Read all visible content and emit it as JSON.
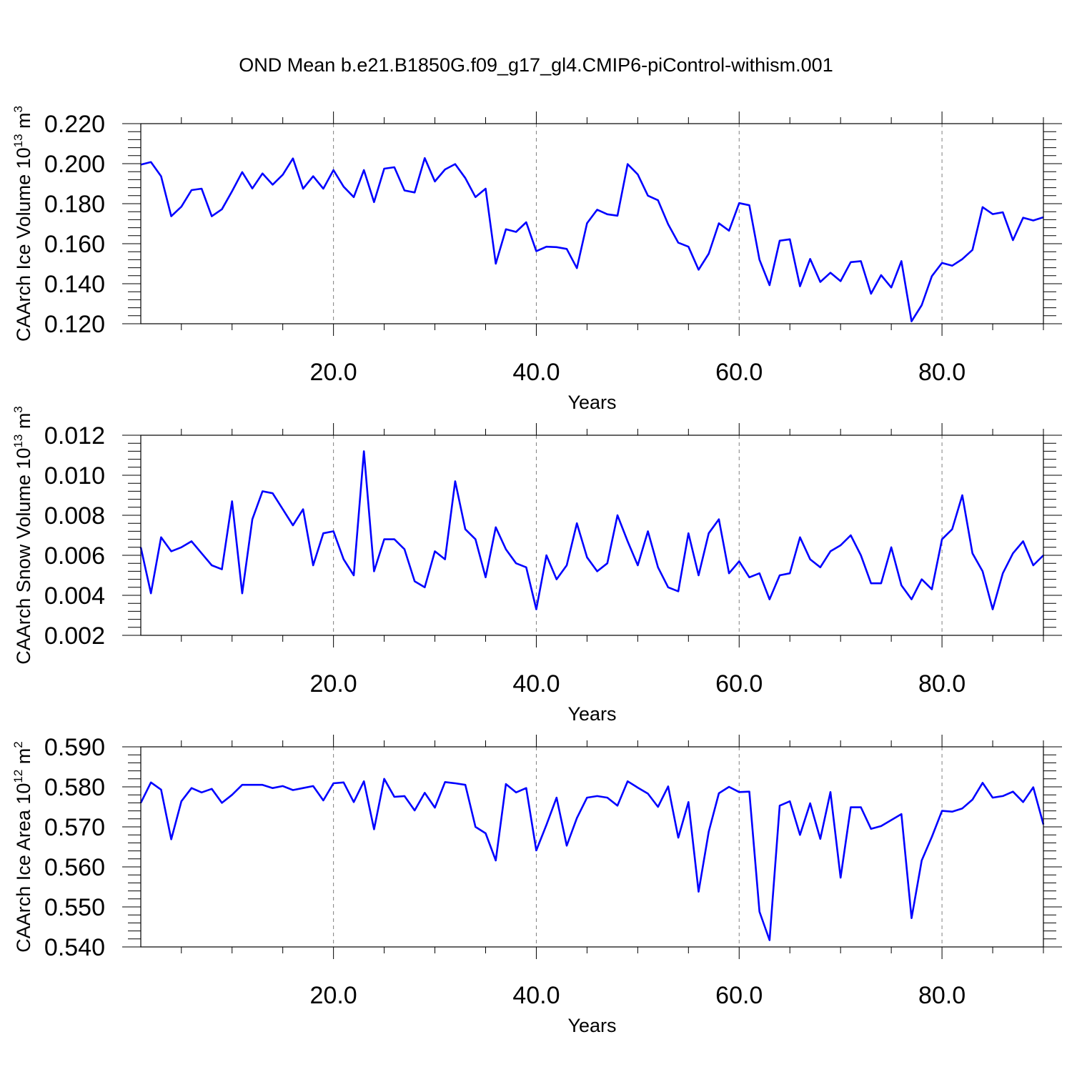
{
  "title": "OND Mean b.e21.B1850G.f09_g17_gl4.CMIP6-piControl-withism.001",
  "line_color": "#0000ff",
  "chart_data": [
    {
      "type": "line",
      "xlabel": "Years",
      "ylabel_parts": {
        "main": "CAArch Ice Volume 10",
        "exp": "13",
        "unit": " m",
        "unit_exp": "3"
      },
      "xlim": [
        1,
        90
      ],
      "ylim": [
        0.12,
        0.22
      ],
      "xticks": [
        20,
        40,
        60,
        80
      ],
      "xtick_labels": [
        "20.0",
        "40.0",
        "60.0",
        "80.0"
      ],
      "yticks": [
        0.12,
        0.14,
        0.16,
        0.18,
        0.2,
        0.22
      ],
      "ytick_labels": [
        "0.120",
        "0.140",
        "0.160",
        "0.180",
        "0.200",
        "0.220"
      ],
      "x_gridlines": [
        20,
        40,
        60,
        80
      ],
      "series": [
        {
          "x": [
            1,
            2,
            3,
            4,
            5,
            6,
            7,
            8,
            9,
            10,
            11,
            12,
            13,
            14,
            15,
            16,
            17,
            18,
            19,
            20,
            21,
            22,
            23,
            24,
            25,
            26,
            27,
            28,
            29,
            30,
            31,
            32,
            33,
            34,
            35,
            36,
            37,
            38,
            39,
            40,
            41,
            42,
            43,
            44,
            45,
            46,
            47,
            48,
            49,
            50,
            51,
            52,
            53,
            54,
            55,
            56,
            57,
            58,
            59,
            60,
            61,
            62,
            63,
            64,
            65,
            66,
            67,
            68,
            69,
            70,
            71,
            72,
            73,
            74,
            75,
            76,
            77,
            78,
            79,
            80,
            81,
            82,
            83,
            84,
            85,
            86,
            87,
            88,
            89,
            90
          ],
          "values": [
            0.1995,
            0.2008,
            0.1937,
            0.1737,
            0.1785,
            0.1868,
            0.1875,
            0.1737,
            0.1772,
            0.1862,
            0.1958,
            0.1876,
            0.1951,
            0.1895,
            0.1945,
            0.2026,
            0.1875,
            0.1937,
            0.1875,
            0.1968,
            0.1885,
            0.1833,
            0.1968,
            0.1808,
            0.1975,
            0.1982,
            0.1866,
            0.1856,
            0.2028,
            0.1911,
            0.1971,
            0.1998,
            0.1928,
            0.1833,
            0.1875,
            0.15,
            0.1672,
            0.1659,
            0.1707,
            0.1563,
            0.1585,
            0.1583,
            0.1574,
            0.1478,
            0.1702,
            0.177,
            0.1747,
            0.174,
            0.1998,
            0.1946,
            0.184,
            0.1817,
            0.1697,
            0.1605,
            0.1585,
            0.147,
            0.155,
            0.1702,
            0.1665,
            0.1803,
            0.1792,
            0.152,
            0.1393,
            0.1615,
            0.1622,
            0.1387,
            0.1524,
            0.1409,
            0.1455,
            0.1413,
            0.1508,
            0.1513,
            0.135,
            0.1443,
            0.1381,
            0.1513,
            0.1212,
            0.1293,
            0.1438,
            0.1504,
            0.149,
            0.1523,
            0.1569,
            0.1783,
            0.1748,
            0.1757,
            0.1618,
            0.173,
            0.1716,
            0.1732
          ]
        }
      ]
    },
    {
      "type": "line",
      "xlabel": "Years",
      "ylabel_parts": {
        "main": "CAArch Snow Volume 10",
        "exp": "13",
        "unit": " m",
        "unit_exp": "3"
      },
      "xlim": [
        1,
        90
      ],
      "ylim": [
        0.002,
        0.012
      ],
      "xticks": [
        20,
        40,
        60,
        80
      ],
      "xtick_labels": [
        "20.0",
        "40.0",
        "60.0",
        "80.0"
      ],
      "yticks": [
        0.002,
        0.004,
        0.006,
        0.008,
        0.01,
        0.012
      ],
      "ytick_labels": [
        "0.002",
        "0.004",
        "0.006",
        "0.008",
        "0.010",
        "0.012"
      ],
      "x_gridlines": [
        20,
        40,
        60,
        80
      ],
      "series": [
        {
          "x": [
            1,
            2,
            3,
            4,
            5,
            6,
            7,
            8,
            9,
            10,
            11,
            12,
            13,
            14,
            15,
            16,
            17,
            18,
            19,
            20,
            21,
            22,
            23,
            24,
            25,
            26,
            27,
            28,
            29,
            30,
            31,
            32,
            33,
            34,
            35,
            36,
            37,
            38,
            39,
            40,
            41,
            42,
            43,
            44,
            45,
            46,
            47,
            48,
            49,
            50,
            51,
            52,
            53,
            54,
            55,
            56,
            57,
            58,
            59,
            60,
            61,
            62,
            63,
            64,
            65,
            66,
            67,
            68,
            69,
            70,
            71,
            72,
            73,
            74,
            75,
            76,
            77,
            78,
            79,
            80,
            81,
            82,
            83,
            84,
            85,
            86,
            87,
            88,
            89,
            90
          ],
          "values": [
            0.0064,
            0.0041,
            0.0069,
            0.0062,
            0.0064,
            0.0067,
            0.0061,
            0.0055,
            0.0053,
            0.0087,
            0.0041,
            0.0078,
            0.0092,
            0.0091,
            0.0083,
            0.0075,
            0.0083,
            0.0055,
            0.0071,
            0.0072,
            0.0058,
            0.005,
            0.0112,
            0.0052,
            0.0068,
            0.0068,
            0.0063,
            0.0047,
            0.0044,
            0.0062,
            0.0058,
            0.0097,
            0.0073,
            0.0068,
            0.0049,
            0.0074,
            0.0063,
            0.0056,
            0.0054,
            0.0033,
            0.006,
            0.0048,
            0.0055,
            0.0076,
            0.0059,
            0.0052,
            0.0056,
            0.008,
            0.0067,
            0.0055,
            0.0072,
            0.0054,
            0.0044,
            0.0042,
            0.0071,
            0.005,
            0.0071,
            0.0078,
            0.0051,
            0.0057,
            0.0049,
            0.0051,
            0.0038,
            0.005,
            0.0051,
            0.0069,
            0.0058,
            0.0054,
            0.0062,
            0.0065,
            0.007,
            0.006,
            0.0046,
            0.0046,
            0.0064,
            0.0045,
            0.0038,
            0.0048,
            0.0043,
            0.0068,
            0.0073,
            0.009,
            0.0061,
            0.0052,
            0.0033,
            0.0051,
            0.0061,
            0.0067,
            0.0055,
            0.006
          ]
        }
      ]
    },
    {
      "type": "line",
      "xlabel": "Years",
      "ylabel_parts": {
        "main": "CAArch Ice Area 10",
        "exp": "12",
        "unit": " m",
        "unit_exp": "2"
      },
      "xlim": [
        1,
        90
      ],
      "ylim": [
        0.54,
        0.59
      ],
      "xticks": [
        20,
        40,
        60,
        80
      ],
      "xtick_labels": [
        "20.0",
        "40.0",
        "60.0",
        "80.0"
      ],
      "yticks": [
        0.54,
        0.55,
        0.56,
        0.57,
        0.58,
        0.59
      ],
      "ytick_labels": [
        "0.540",
        "0.550",
        "0.560",
        "0.570",
        "0.580",
        "0.590"
      ],
      "x_gridlines": [
        20,
        40,
        60,
        80
      ],
      "series": [
        {
          "x": [
            1,
            2,
            3,
            4,
            5,
            6,
            7,
            8,
            9,
            10,
            11,
            12,
            13,
            14,
            15,
            16,
            17,
            18,
            19,
            20,
            21,
            22,
            23,
            24,
            25,
            26,
            27,
            28,
            29,
            30,
            31,
            32,
            33,
            34,
            35,
            36,
            37,
            38,
            39,
            40,
            41,
            42,
            43,
            44,
            45,
            46,
            47,
            48,
            49,
            50,
            51,
            52,
            53,
            54,
            55,
            56,
            57,
            58,
            59,
            60,
            61,
            62,
            63,
            64,
            65,
            66,
            67,
            68,
            69,
            70,
            71,
            72,
            73,
            74,
            75,
            76,
            77,
            78,
            79,
            80,
            81,
            82,
            83,
            84,
            85,
            86,
            87,
            88,
            89,
            90
          ],
          "values": [
            0.576,
            0.5811,
            0.5793,
            0.5669,
            0.5764,
            0.5797,
            0.5786,
            0.5795,
            0.576,
            0.578,
            0.5805,
            0.5805,
            0.5805,
            0.5797,
            0.5802,
            0.5792,
            0.5797,
            0.5802,
            0.5766,
            0.5809,
            0.5811,
            0.5762,
            0.5814,
            0.5694,
            0.582,
            0.5775,
            0.5777,
            0.5741,
            0.5785,
            0.5748,
            0.5812,
            0.5809,
            0.5805,
            0.57,
            0.5684,
            0.5616,
            0.5807,
            0.5786,
            0.5797,
            0.5641,
            0.5705,
            0.5773,
            0.5653,
            0.5722,
            0.5773,
            0.5777,
            0.5773,
            0.5753,
            0.5814,
            0.5798,
            0.5783,
            0.575,
            0.5801,
            0.5673,
            0.5762,
            0.5538,
            0.5688,
            0.5784,
            0.58,
            0.5787,
            0.5788,
            0.5488,
            0.5417,
            0.5753,
            0.5764,
            0.568,
            0.5759,
            0.567,
            0.5787,
            0.5573,
            0.5749,
            0.5749,
            0.5695,
            0.5702,
            0.5717,
            0.5732,
            0.5472,
            0.5616,
            0.5675,
            0.574,
            0.5738,
            0.5746,
            0.5768,
            0.581,
            0.5773,
            0.5777,
            0.5788,
            0.5762,
            0.5799,
            0.5706
          ]
        }
      ]
    }
  ]
}
